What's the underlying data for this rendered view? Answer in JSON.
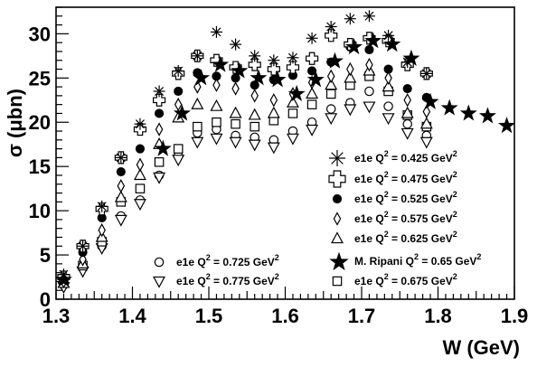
{
  "chart_data": {
    "type": "scatter",
    "xlabel": "W (GeV)",
    "ylabel": "σ (μbn)",
    "xlim": [
      1.3,
      1.9
    ],
    "ylim": [
      0,
      33
    ],
    "x_ticks": [
      "1.3",
      "1.4",
      "1.5",
      "1.6",
      "1.7",
      "1.8",
      "1.9"
    ],
    "y_ticks": [
      "0",
      "5",
      "10",
      "15",
      "20",
      "25",
      "30"
    ],
    "grid": false,
    "legend_placement": "bottom-right",
    "series": [
      {
        "name": "e1e Q",
        "legend_q": "2",
        "legend_tail": " = 0.425 GeV",
        "legend_unit_exp": "2",
        "marker": "asterisk",
        "x": [
          1.31,
          1.335,
          1.36,
          1.385,
          1.41,
          1.435,
          1.46,
          1.485,
          1.51,
          1.535,
          1.56,
          1.585,
          1.61,
          1.635,
          1.66,
          1.685,
          1.71,
          1.735,
          1.76,
          1.785
        ],
        "y": [
          2.8,
          6.0,
          10.5,
          16.0,
          19.8,
          23.5,
          25.8,
          27.5,
          30.2,
          28.8,
          27.5,
          27.0,
          27.3,
          29.5,
          30.8,
          31.7,
          32.0,
          29.8,
          26.8,
          25.5
        ]
      },
      {
        "name": "e1e Q",
        "legend_q": "2",
        "legend_tail": " = 0.475 GeV",
        "legend_unit_exp": "2",
        "marker": "cross",
        "x": [
          1.31,
          1.335,
          1.36,
          1.385,
          1.41,
          1.435,
          1.46,
          1.485,
          1.51,
          1.535,
          1.56,
          1.585,
          1.61,
          1.635,
          1.66,
          1.685,
          1.71,
          1.735,
          1.76,
          1.785
        ],
        "y": [
          2.5,
          6.0,
          10.2,
          16.0,
          19.2,
          22.5,
          25.5,
          27.5,
          27.0,
          26.2,
          26.5,
          26.0,
          26.2,
          27.2,
          29.8,
          28.8,
          29.5,
          29.2,
          26.5,
          25.5
        ]
      },
      {
        "name": "e1e Q",
        "legend_q": "2",
        "legend_tail": " = 0.525 GeV",
        "legend_unit_exp": "2",
        "marker": "filled-circle",
        "x": [
          1.31,
          1.335,
          1.36,
          1.385,
          1.41,
          1.435,
          1.46,
          1.485,
          1.51,
          1.535,
          1.56,
          1.585,
          1.61,
          1.635,
          1.66,
          1.685,
          1.71,
          1.735,
          1.76,
          1.785
        ],
        "y": [
          2.4,
          5.3,
          9.2,
          14.4,
          17.0,
          21.0,
          23.5,
          25.6,
          25.2,
          25.0,
          24.2,
          24.8,
          25.3,
          25.8,
          26.8,
          28.5,
          28.2,
          26.0,
          23.8,
          22.8
        ]
      },
      {
        "name": "e1e Q",
        "legend_q": "2",
        "legend_tail": " = 0.575 GeV",
        "legend_unit_exp": "2",
        "marker": "diamond",
        "x": [
          1.31,
          1.335,
          1.36,
          1.385,
          1.41,
          1.435,
          1.46,
          1.485,
          1.51,
          1.535,
          1.56,
          1.585,
          1.61,
          1.635,
          1.66,
          1.685,
          1.71,
          1.735,
          1.76,
          1.785
        ],
        "y": [
          2.0,
          4.5,
          7.8,
          12.8,
          15.2,
          19.2,
          22.0,
          24.0,
          24.2,
          23.8,
          23.0,
          22.5,
          23.2,
          24.5,
          25.2,
          26.0,
          26.5,
          25.0,
          22.5,
          21.2
        ]
      },
      {
        "name": "e1e Q",
        "legend_q": "2",
        "legend_tail": " = 0.625 GeV",
        "legend_unit_exp": "2",
        "marker": "triangle",
        "x": [
          1.31,
          1.335,
          1.36,
          1.385,
          1.41,
          1.435,
          1.46,
          1.485,
          1.51,
          1.535,
          1.56,
          1.585,
          1.61,
          1.635,
          1.66,
          1.685,
          1.71,
          1.735,
          1.76,
          1.785
        ],
        "y": [
          1.8,
          4.0,
          7.0,
          11.5,
          14.0,
          17.5,
          20.5,
          22.0,
          21.8,
          21.0,
          20.8,
          21.0,
          22.2,
          23.2,
          24.2,
          25.0,
          25.8,
          24.0,
          21.0,
          19.8
        ]
      },
      {
        "name": "M. Ripani Q",
        "legend_q": "2",
        "legend_tail": " = 0.65 GeV",
        "legend_unit_exp": "2",
        "marker": "star",
        "x": [
          1.31,
          1.44,
          1.465,
          1.49,
          1.515,
          1.54,
          1.565,
          1.59,
          1.615,
          1.64,
          1.665,
          1.69,
          1.715,
          1.74,
          1.765,
          1.79,
          1.815,
          1.84,
          1.865,
          1.89
        ],
        "y": [
          2.2,
          17.0,
          21.0,
          25.0,
          26.5,
          25.8,
          25.0,
          24.8,
          23.2,
          24.8,
          26.9,
          28.5,
          29.2,
          28.8,
          27.2,
          22.3,
          21.6,
          21.0,
          20.7,
          19.6
        ]
      },
      {
        "name": "e1e Q",
        "legend_q": "2",
        "legend_tail": " = 0.675 GeV",
        "legend_unit_exp": "2",
        "marker": "square",
        "x": [
          1.31,
          1.335,
          1.36,
          1.385,
          1.41,
          1.435,
          1.46,
          1.485,
          1.51,
          1.535,
          1.56,
          1.585,
          1.61,
          1.635,
          1.66,
          1.685,
          1.71,
          1.735,
          1.76,
          1.785
        ],
        "y": [
          1.9,
          3.8,
          6.5,
          11.0,
          12.5,
          15.5,
          17.0,
          19.5,
          20.0,
          19.8,
          19.5,
          20.2,
          21.0,
          22.0,
          23.2,
          24.2,
          25.2,
          23.5,
          20.8,
          19.5
        ]
      },
      {
        "name": "e1e Q",
        "legend_q": "2",
        "legend_tail": " = 0.725 GeV",
        "legend_unit_exp": "2",
        "marker": "circle",
        "x": [
          1.31,
          1.335,
          1.36,
          1.385,
          1.41,
          1.435,
          1.46,
          1.485,
          1.51,
          1.535,
          1.56,
          1.585,
          1.61,
          1.635,
          1.66,
          1.685,
          1.71,
          1.735,
          1.76,
          1.785
        ],
        "y": [
          1.6,
          3.5,
          6.0,
          9.4,
          11.2,
          14.0,
          16.2,
          18.8,
          19.2,
          18.5,
          18.3,
          18.0,
          19.0,
          20.0,
          21.5,
          22.2,
          23.5,
          21.8,
          19.8,
          18.5
        ]
      },
      {
        "name": "e1e Q",
        "legend_q": "2",
        "legend_tail": " = 0.775 GeV",
        "legend_unit_exp": "2",
        "marker": "inverted-triangle",
        "x": [
          1.31,
          1.335,
          1.36,
          1.385,
          1.41,
          1.435,
          1.46,
          1.485,
          1.51,
          1.535,
          1.56,
          1.585,
          1.61,
          1.635,
          1.66,
          1.685,
          1.71,
          1.735,
          1.76,
          1.785
        ],
        "y": [
          1.4,
          3.2,
          5.8,
          9.0,
          10.8,
          13.8,
          15.8,
          17.8,
          18.2,
          17.8,
          17.5,
          17.2,
          18.2,
          19.2,
          20.5,
          21.5,
          21.8,
          20.5,
          18.8,
          17.8
        ]
      }
    ],
    "legend_layout": [
      {
        "series": 0,
        "anchor": "right-column"
      },
      {
        "series": 1,
        "anchor": "right-column"
      },
      {
        "series": 2,
        "anchor": "right-column"
      },
      {
        "series": 3,
        "anchor": "right-column"
      },
      {
        "series": 4,
        "anchor": "right-column"
      },
      {
        "series": 7,
        "anchor": "left-column"
      },
      {
        "series": 8,
        "anchor": "left-column"
      },
      {
        "series": 5,
        "anchor": "right-column"
      },
      {
        "series": 6,
        "anchor": "right-column"
      }
    ]
  }
}
